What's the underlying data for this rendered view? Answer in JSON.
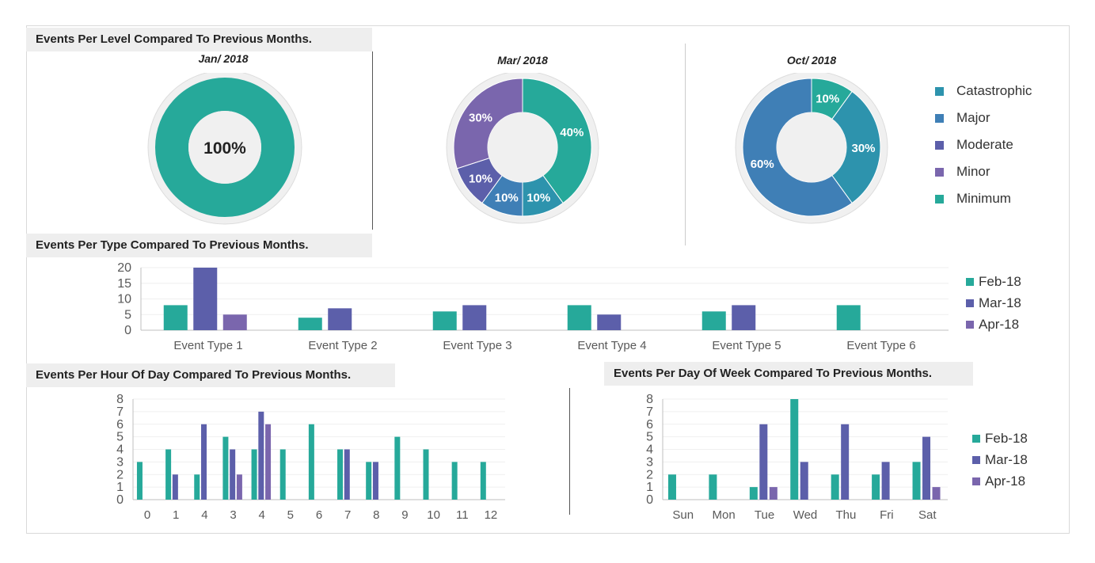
{
  "colors": {
    "minimum": "#26a99a",
    "catastrophic": "#2d93ad",
    "major": "#3f7fb6",
    "moderate": "#5c5faa",
    "minor": "#7a66ad",
    "feb": "#26a99a",
    "mar": "#5c5faa",
    "apr": "#7a66ad"
  },
  "sections": {
    "level_title": "Events Per Level Compared To Previous Months.",
    "type_title": "Events Per Type Compared To Previous Months.",
    "hour_title": "Events Per Hour Of Day Compared To Previous Months.",
    "week_title": "Events Per Day Of Week Compared To Previous Months."
  },
  "level_legend": [
    {
      "label": "Catastrophic",
      "key": "catastrophic"
    },
    {
      "label": "Major",
      "key": "major"
    },
    {
      "label": "Moderate",
      "key": "moderate"
    },
    {
      "label": "Minor",
      "key": "minor"
    },
    {
      "label": "Minimum",
      "key": "minimum"
    }
  ],
  "month_legend": [
    {
      "label": "Feb-18",
      "key": "feb"
    },
    {
      "label": "Mar-18",
      "key": "mar"
    },
    {
      "label": "Apr-18",
      "key": "apr"
    }
  ],
  "chart_data": [
    {
      "type": "pie",
      "title": "Jan/ 2018",
      "slices": [
        {
          "label": "Minimum",
          "value": 100,
          "display": "100%"
        }
      ]
    },
    {
      "type": "pie",
      "title": "Mar/ 2018",
      "slices": [
        {
          "label": "Minimum",
          "value": 40,
          "display": "40%"
        },
        {
          "label": "Catastrophic",
          "value": 10,
          "display": "10%"
        },
        {
          "label": "Major",
          "value": 10,
          "display": "10%"
        },
        {
          "label": "Moderate",
          "value": 10,
          "display": "10%"
        },
        {
          "label": "Minor",
          "value": 30,
          "display": "30%"
        }
      ]
    },
    {
      "type": "pie",
      "title": "Oct/ 2018",
      "slices": [
        {
          "label": "Minimum",
          "value": 10,
          "display": "10%"
        },
        {
          "label": "Catastrophic",
          "value": 30,
          "display": "30%"
        },
        {
          "label": "Major",
          "value": 60,
          "display": "60%"
        }
      ]
    },
    {
      "type": "bar",
      "categories": [
        "Event Type 1",
        "Event Type 2",
        "Event Type 3",
        "Event Type 4",
        "Event Type 5",
        "Event Type 6"
      ],
      "series": [
        {
          "name": "Feb-18",
          "values": [
            8,
            4,
            6,
            8,
            6,
            8
          ]
        },
        {
          "name": "Mar-18",
          "values": [
            20,
            7,
            8,
            5,
            8,
            0
          ]
        },
        {
          "name": "Apr-18",
          "values": [
            5,
            0,
            0,
            0,
            0,
            0
          ]
        }
      ],
      "yticks": [
        "0",
        "5",
        "10",
        "15",
        "20"
      ],
      "ylim": [
        0,
        20
      ]
    },
    {
      "type": "bar",
      "categories": [
        "0",
        "1",
        "4",
        "3",
        "4",
        "5",
        "6",
        "7",
        "8",
        "9",
        "10",
        "11",
        "12"
      ],
      "series": [
        {
          "name": "Feb-18",
          "values": [
            3,
            4,
            2,
            5,
            4,
            4,
            6,
            4,
            3,
            5,
            4,
            3,
            3
          ]
        },
        {
          "name": "Mar-18",
          "values": [
            0,
            2,
            6,
            4,
            7,
            0,
            0,
            4,
            3,
            0,
            0,
            0,
            0
          ]
        },
        {
          "name": "Apr-18",
          "values": [
            0,
            0,
            0,
            2,
            6,
            0,
            0,
            0,
            0,
            0,
            0,
            0,
            0
          ]
        }
      ],
      "yticks": [
        "0",
        "1",
        "2",
        "3",
        "4",
        "5",
        "6",
        "7",
        "8"
      ],
      "ylim": [
        0,
        8
      ]
    },
    {
      "type": "bar",
      "categories": [
        "Sun",
        "Mon",
        "Tue",
        "Wed",
        "Thu",
        "Fri",
        "Sat"
      ],
      "series": [
        {
          "name": "Feb-18",
          "values": [
            2,
            2,
            1,
            8,
            2,
            2,
            3
          ]
        },
        {
          "name": "Mar-18",
          "values": [
            0,
            0,
            6,
            3,
            6,
            3,
            5
          ]
        },
        {
          "name": "Apr-18",
          "values": [
            0,
            0,
            1,
            0,
            0,
            0,
            1
          ]
        }
      ],
      "yticks": [
        "0",
        "1",
        "2",
        "3",
        "4",
        "5",
        "6",
        "7",
        "8"
      ],
      "ylim": [
        0,
        8
      ]
    }
  ]
}
